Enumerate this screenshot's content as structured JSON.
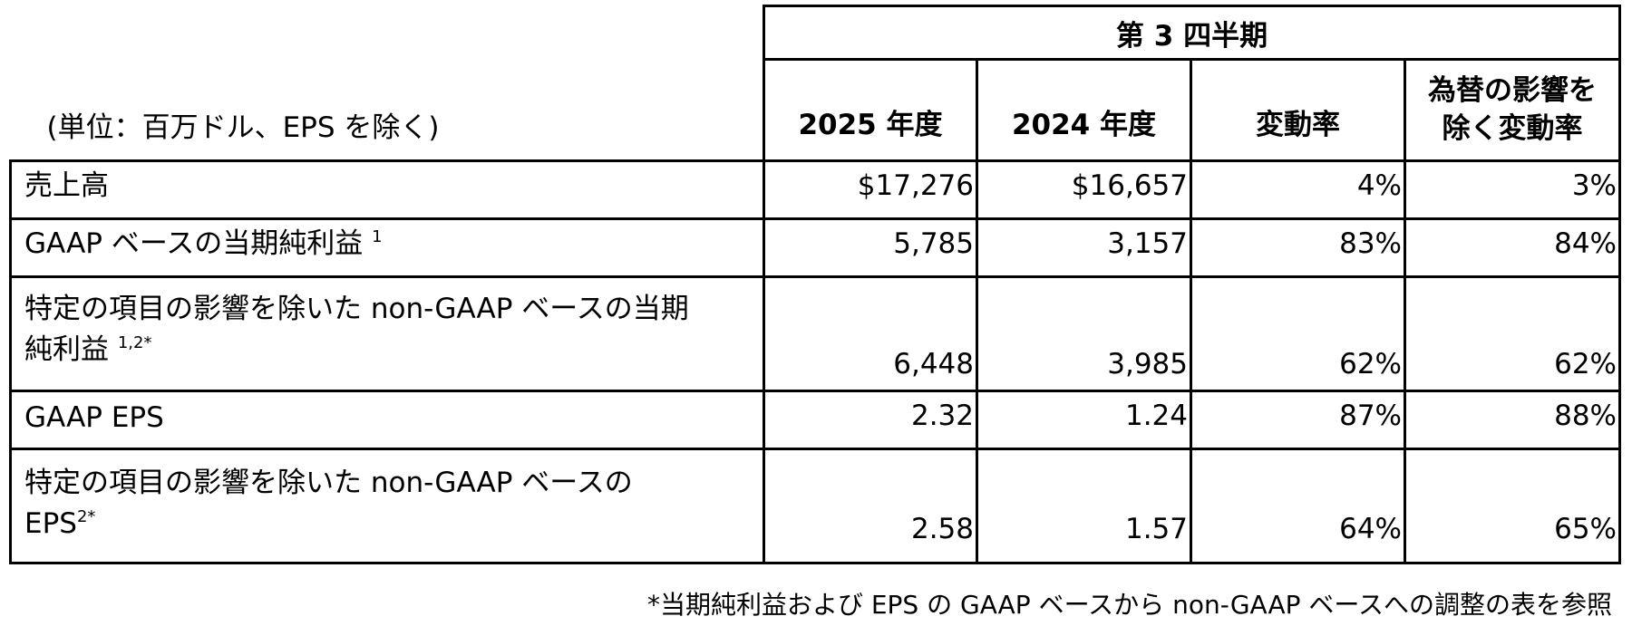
{
  "table": {
    "unit_label": "(単位：百万ドル、EPS を除く)",
    "period_header": "第 3 四半期",
    "columns": [
      "2025 年度",
      "2024 年度",
      "変動率"
    ],
    "fx_column": {
      "line1": "為替の影響を",
      "line2": "除く変動率"
    },
    "rows": [
      {
        "label": "売上高",
        "sup": "",
        "values": [
          "$17,276",
          "$16,657",
          "4%",
          "3%"
        ]
      },
      {
        "label": "GAAP ベースの当期純利益",
        "sup": "1",
        "values": [
          "5,785",
          "3,157",
          "83%",
          "84%"
        ]
      },
      {
        "label_line1": "特定の項目の影響を除いた non-GAAP ベースの当期",
        "label_line2": "純利益",
        "sup": "1,2*",
        "values": [
          "6,448",
          "3,985",
          "62%",
          "62%"
        ]
      },
      {
        "label": "GAAP EPS",
        "sup": "",
        "values": [
          "2.32",
          "1.24",
          "87%",
          "88%"
        ]
      },
      {
        "label_line1": "特定の項目の影響を除いた non-GAAP ベースの",
        "label_line2": "EPS",
        "sup": "2*",
        "values": [
          "2.58",
          "1.57",
          "64%",
          "65%"
        ]
      }
    ]
  },
  "footnote": "*当期純利益および EPS の GAAP ベースから non-GAAP ベースへの調整の表を参照"
}
